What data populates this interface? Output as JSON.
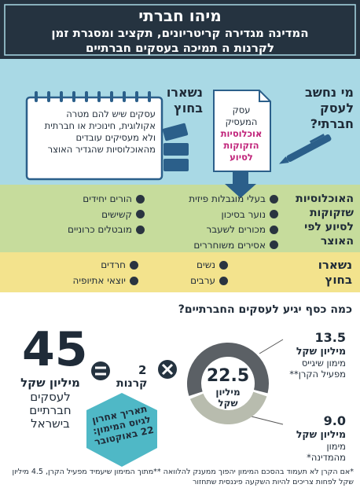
{
  "header": {
    "title": "מיהו חברתי",
    "subtitle": [
      "המדינה מגדירה קריטריונים, תקציב ומסגרת זמן",
      "לקרנות ה תמיכה בעסקים חברתיים"
    ]
  },
  "criteria": {
    "question": "מי נחשב לעסק חברתי?",
    "qualifies": [
      "עסק המעסיק",
      "אוכלוסיות הזקוקות לסיוע"
    ],
    "excluded_title": "נשארו בחוץ",
    "excluded_text": "עסקים שיש להם מטרה אקולוגית, חינוכית או חברתית ולא מעסיקים עובדים מהאוכלוסיות שהגדיר האוצר"
  },
  "populations": {
    "title": "האוכלוסיות שזקוקות לסיוע לפי האוצר",
    "right": [
      "בעלי מוגבלות פיזית",
      "נוער בסיכון",
      "מכורים לשעבר",
      "אסירים משוחררים"
    ],
    "left": [
      "הורים יחידים",
      "קשישים",
      "מובטלים כרוניים"
    ]
  },
  "left_out": {
    "title": "נשארו בחוץ",
    "right": [
      "נשים",
      "ערבים"
    ],
    "left": [
      "חרדים",
      "יוצאי אתיופיה"
    ]
  },
  "funding": {
    "question": "כמה כסף יגיע לעסקים החברתיים?",
    "total": 22.5,
    "total_unit": "מיליון שקל",
    "parts": [
      {
        "amount": 13.5,
        "unit": "מיליון שקל",
        "desc": "מימון שיגייס מפעיל הקרן**"
      },
      {
        "amount": {
          "value": 9,
          "label": "9.0"
        },
        "unit": "מיליון שקל",
        "desc": "מימון מהמדינה*"
      }
    ],
    "funds": 2,
    "funds_label": "קרנות",
    "result": 45,
    "result_unit": "מיליון שקל",
    "result_desc": "לעסקים חברתיים בישראל",
    "deadline": "תאריך אחרון לגיוס המימון: 22 באוקטובר"
  },
  "footnote": "*אם הקרן לא תעמוד בהסכם המימון יהפוך ממענק להלוואה **מתוך המימון שיעמיד מפעיל הקרן, 4.5 מיליון שקל לפחות צריכים להיות השקעה פיננסית שתחזור"
}
